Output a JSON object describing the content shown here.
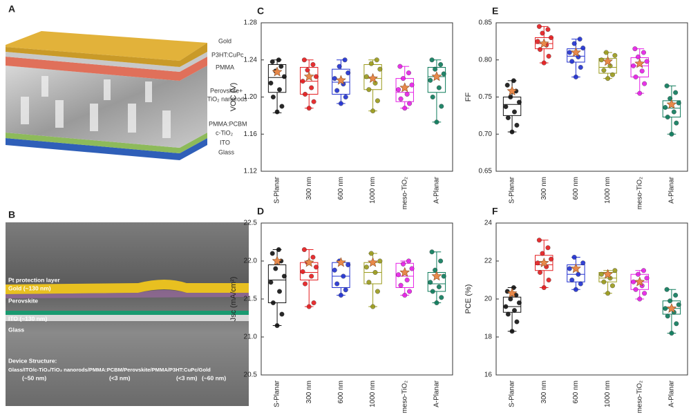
{
  "panel_a": {
    "label": "A",
    "layers": [
      "Gold",
      "P3HT:CuPc",
      "PMMA",
      "Perovskite+",
      "TiO₂ nanorods",
      "PMMA:PCBM",
      "c-TiO₂",
      "ITO",
      "Glass"
    ]
  },
  "panel_b": {
    "label": "B",
    "layers": [
      "Pt protection layer",
      "Gold (~130 nm)",
      "Perovskite",
      "ITO (~130 nm)",
      "Glass"
    ],
    "structure_title": "Device Structure:",
    "structure": "Glass/ITO/c-TiO₂/TiO₂ nanorods/PMMA:PCBM/Perovskite/PMMA/P3HT:CuPc/Gold",
    "thicknesses": [
      "(~50 nm)",
      "(<3 nm)",
      "(<3 nm)",
      "(~60 nm)"
    ]
  },
  "chart_data": [
    {
      "type": "box",
      "label": "C",
      "ylabel": "VOC (V)",
      "ylim": [
        1.12,
        1.28
      ],
      "yticks": [
        1.12,
        1.16,
        {
          "value": 1.2,
          "label": "1.20"
        },
        1.24,
        1.28
      ],
      "categories": [
        "S-Planar",
        "300 nm",
        "600 nm",
        "1000 nm",
        "meso-TiO₂",
        "A-Planar"
      ],
      "boxes": [
        {
          "color": "#111111",
          "min": 1.183,
          "q1": 1.205,
          "median": 1.221,
          "q3": 1.235,
          "max": 1.24,
          "mean": 1.227,
          "points": [
            1.184,
            1.19,
            1.2,
            1.208,
            1.215,
            1.222,
            1.228,
            1.233,
            1.238,
            1.24
          ]
        },
        {
          "color": "#e41a1c",
          "min": 1.188,
          "q1": 1.203,
          "median": 1.217,
          "q3": 1.232,
          "max": 1.24,
          "mean": 1.222,
          "points": [
            1.188,
            1.195,
            1.203,
            1.21,
            1.217,
            1.222,
            1.229,
            1.235,
            1.24
          ]
        },
        {
          "color": "#1f2fd0",
          "min": 1.193,
          "q1": 1.203,
          "median": 1.216,
          "q3": 1.23,
          "max": 1.24,
          "mean": 1.218,
          "points": [
            1.193,
            1.2,
            1.207,
            1.214,
            1.22,
            1.226,
            1.233,
            1.24
          ]
        },
        {
          "color": "#9a9a1a",
          "min": 1.185,
          "q1": 1.208,
          "median": 1.22,
          "q3": 1.235,
          "max": 1.24,
          "mean": 1.22,
          "points": [
            1.185,
            1.196,
            1.208,
            1.215,
            1.222,
            1.23,
            1.236,
            1.24
          ]
        },
        {
          "color": "#e61ee6",
          "min": 1.188,
          "q1": 1.195,
          "median": 1.205,
          "q3": 1.22,
          "max": 1.233,
          "mean": 1.21,
          "points": [
            1.188,
            1.193,
            1.198,
            1.203,
            1.208,
            1.213,
            1.22,
            1.226,
            1.233
          ]
        },
        {
          "color": "#0c7a5a",
          "min": 1.173,
          "q1": 1.205,
          "median": 1.222,
          "q3": 1.232,
          "max": 1.24,
          "mean": 1.222,
          "points": [
            1.173,
            1.19,
            1.2,
            1.21,
            1.218,
            1.225,
            1.23,
            1.235,
            1.24
          ]
        }
      ]
    },
    {
      "type": "box",
      "label": "D",
      "ylabel": "Jsc (mA/cm²)",
      "ylim": [
        20.5,
        22.5
      ],
      "yticks": [
        20.5,
        {
          "value": 21,
          "label": "21.0"
        },
        21.5,
        {
          "value": 22,
          "label": "22.0"
        },
        22.5
      ],
      "categories": [
        "S-Planar",
        "300 nm",
        "600 nm",
        "1000 nm",
        "meso-TiO₂",
        "A-Planar"
      ],
      "boxes": [
        {
          "color": "#111111",
          "min": 21.15,
          "q1": 21.45,
          "median": 21.75,
          "q3": 21.95,
          "max": 22.15,
          "mean": 22.0,
          "points": [
            21.15,
            21.3,
            21.45,
            21.6,
            21.72,
            21.8,
            21.9,
            22.0,
            22.1,
            22.15
          ]
        },
        {
          "color": "#e41a1c",
          "min": 21.4,
          "q1": 21.75,
          "median": 21.85,
          "q3": 21.98,
          "max": 22.15,
          "mean": 21.98,
          "points": [
            21.4,
            21.45,
            21.7,
            21.8,
            21.86,
            21.92,
            21.98,
            22.05,
            22.15
          ]
        },
        {
          "color": "#1f2fd0",
          "min": 21.55,
          "q1": 21.65,
          "median": 21.8,
          "q3": 21.98,
          "max": 22.0,
          "mean": 21.98,
          "points": [
            21.55,
            21.62,
            21.7,
            21.8,
            21.88,
            21.95,
            22.0
          ]
        },
        {
          "color": "#9a9a1a",
          "min": 21.4,
          "q1": 21.7,
          "median": 21.85,
          "q3": 21.98,
          "max": 22.1,
          "mean": 21.98,
          "points": [
            21.4,
            21.6,
            21.72,
            21.85,
            21.92,
            22.0,
            22.1
          ]
        },
        {
          "color": "#e61ee6",
          "min": 21.55,
          "q1": 21.65,
          "median": 21.8,
          "q3": 21.97,
          "max": 22.0,
          "mean": 21.85,
          "points": [
            21.55,
            21.6,
            21.68,
            21.75,
            21.82,
            21.9,
            21.96,
            22.0
          ]
        },
        {
          "color": "#0c7a5a",
          "min": 21.45,
          "q1": 21.6,
          "median": 21.7,
          "q3": 21.85,
          "max": 22.12,
          "mean": 21.8,
          "points": [
            21.45,
            21.52,
            21.6,
            21.66,
            21.72,
            21.8,
            21.88,
            22.0,
            22.12
          ]
        }
      ]
    },
    {
      "type": "box",
      "label": "E",
      "ylabel": "FF",
      "ylim": [
        0.65,
        0.85
      ],
      "yticks": [
        0.65,
        {
          "value": 0.7,
          "label": "0.70"
        },
        0.75,
        {
          "value": 0.8,
          "label": "0.80"
        },
        0.85
      ],
      "categories": [
        "S-Planar",
        "300 nm",
        "600 nm",
        "1000 nm",
        "meso-TiO₂",
        "A-Planar"
      ],
      "boxes": [
        {
          "color": "#111111",
          "min": 0.703,
          "q1": 0.725,
          "median": 0.74,
          "q3": 0.75,
          "max": 0.772,
          "mean": 0.758,
          "points": [
            0.703,
            0.712,
            0.722,
            0.73,
            0.737,
            0.743,
            0.75,
            0.758,
            0.766,
            0.772
          ]
        },
        {
          "color": "#e41a1c",
          "min": 0.796,
          "q1": 0.815,
          "median": 0.822,
          "q3": 0.83,
          "max": 0.845,
          "mean": 0.822,
          "points": [
            0.796,
            0.805,
            0.814,
            0.82,
            0.825,
            0.83,
            0.836,
            0.841,
            0.845
          ]
        },
        {
          "color": "#1f2fd0",
          "min": 0.777,
          "q1": 0.797,
          "median": 0.805,
          "q3": 0.815,
          "max": 0.828,
          "mean": 0.81,
          "points": [
            0.777,
            0.79,
            0.798,
            0.804,
            0.81,
            0.816,
            0.822,
            0.828
          ]
        },
        {
          "color": "#9a9a1a",
          "min": 0.775,
          "q1": 0.782,
          "median": 0.79,
          "q3": 0.802,
          "max": 0.81,
          "mean": 0.798,
          "points": [
            0.775,
            0.78,
            0.786,
            0.792,
            0.8,
            0.806,
            0.81
          ]
        },
        {
          "color": "#e61ee6",
          "min": 0.755,
          "q1": 0.777,
          "median": 0.792,
          "q3": 0.803,
          "max": 0.815,
          "mean": 0.795,
          "points": [
            0.755,
            0.768,
            0.777,
            0.785,
            0.792,
            0.798,
            0.804,
            0.81,
            0.815
          ]
        },
        {
          "color": "#0c7a5a",
          "min": 0.7,
          "q1": 0.723,
          "median": 0.735,
          "q3": 0.745,
          "max": 0.765,
          "mean": 0.74,
          "points": [
            0.7,
            0.715,
            0.723,
            0.73,
            0.736,
            0.742,
            0.748,
            0.756,
            0.765
          ]
        }
      ]
    },
    {
      "type": "box",
      "label": "F",
      "ylabel": "PCE (%)",
      "ylim": [
        16,
        24
      ],
      "yticks": [
        16,
        18,
        20,
        22,
        24
      ],
      "categories": [
        "S-Planar",
        "300 nm",
        "600 nm",
        "1000 nm",
        "meso-TiO₂",
        "A-Planar"
      ],
      "boxes": [
        {
          "color": "#111111",
          "min": 18.3,
          "q1": 19.3,
          "median": 19.6,
          "q3": 20.1,
          "max": 20.6,
          "mean": 20.3,
          "points": [
            18.3,
            18.8,
            19.2,
            19.4,
            19.6,
            19.8,
            20.0,
            20.2,
            20.4,
            20.6
          ]
        },
        {
          "color": "#e41a1c",
          "min": 20.6,
          "q1": 21.5,
          "median": 21.8,
          "q3": 22.3,
          "max": 23.1,
          "mean": 21.9,
          "points": [
            20.6,
            21.0,
            21.4,
            21.7,
            21.9,
            22.1,
            22.4,
            22.7,
            23.1
          ]
        },
        {
          "color": "#1f2fd0",
          "min": 20.5,
          "q1": 20.9,
          "median": 21.3,
          "q3": 21.8,
          "max": 22.2,
          "mean": 21.6,
          "points": [
            20.5,
            20.8,
            21.0,
            21.3,
            21.6,
            21.9,
            22.2
          ]
        },
        {
          "color": "#9a9a1a",
          "min": 20.3,
          "q1": 20.9,
          "median": 21.1,
          "q3": 21.4,
          "max": 21.5,
          "mean": 21.3,
          "points": [
            20.3,
            20.7,
            20.9,
            21.1,
            21.3,
            21.5
          ]
        },
        {
          "color": "#e61ee6",
          "min": 20.0,
          "q1": 20.5,
          "median": 20.9,
          "q3": 21.3,
          "max": 21.5,
          "mean": 20.9,
          "points": [
            20.0,
            20.3,
            20.5,
            20.7,
            20.9,
            21.1,
            21.3,
            21.5
          ]
        },
        {
          "color": "#0c7a5a",
          "min": 18.2,
          "q1": 19.2,
          "median": 19.5,
          "q3": 19.9,
          "max": 20.5,
          "mean": 19.5,
          "points": [
            18.2,
            18.7,
            19.1,
            19.3,
            19.5,
            19.7,
            19.9,
            20.2,
            20.5
          ]
        }
      ]
    }
  ]
}
